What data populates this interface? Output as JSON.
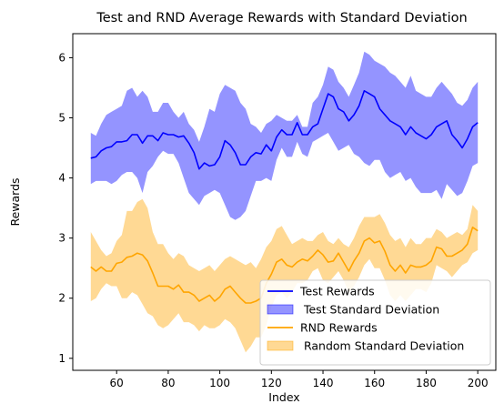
{
  "chart_data": {
    "type": "line",
    "title": "Test and RND Average Rewards with Standard Deviation",
    "xlabel": "Index",
    "ylabel": "Rewards",
    "xlim": [
      43,
      207
    ],
    "ylim": [
      0.8,
      6.4
    ],
    "xticks": [
      60,
      80,
      100,
      120,
      140,
      160,
      180,
      200
    ],
    "yticks": [
      1,
      2,
      3,
      4,
      5,
      6
    ],
    "legend_position": "lower right",
    "x": [
      50,
      52,
      54,
      56,
      58,
      60,
      62,
      64,
      66,
      68,
      70,
      72,
      74,
      76,
      78,
      80,
      82,
      84,
      86,
      88,
      90,
      92,
      94,
      96,
      98,
      100,
      102,
      104,
      106,
      108,
      110,
      112,
      114,
      116,
      118,
      120,
      122,
      124,
      126,
      128,
      130,
      132,
      134,
      136,
      138,
      140,
      142,
      144,
      146,
      148,
      150,
      152,
      154,
      156,
      158,
      160,
      162,
      164,
      166,
      168,
      170,
      172,
      174,
      176,
      178,
      180,
      182,
      184,
      186,
      188,
      190,
      192,
      194,
      196,
      198,
      200
    ],
    "series": [
      {
        "name": "Test Rewards",
        "color": "#0000ff",
        "kind": "line",
        "values": [
          4.33,
          4.35,
          4.45,
          4.5,
          4.52,
          4.6,
          4.6,
          4.62,
          4.72,
          4.72,
          4.58,
          4.7,
          4.7,
          4.62,
          4.75,
          4.72,
          4.72,
          4.68,
          4.7,
          4.58,
          4.42,
          4.15,
          4.25,
          4.2,
          4.22,
          4.35,
          4.62,
          4.55,
          4.42,
          4.22,
          4.22,
          4.35,
          4.42,
          4.4,
          4.55,
          4.45,
          4.68,
          4.8,
          4.72,
          4.72,
          4.92,
          4.72,
          4.72,
          4.85,
          4.9,
          5.15,
          5.4,
          5.35,
          5.15,
          5.1,
          4.95,
          5.05,
          5.2,
          5.45,
          5.4,
          5.35,
          5.15,
          5.05,
          4.95,
          4.9,
          4.85,
          4.72,
          4.85,
          4.75,
          4.7,
          4.65,
          4.72,
          4.85,
          4.9,
          4.95,
          4.72,
          4.62,
          4.5,
          4.65,
          4.85,
          4.92
        ]
      },
      {
        "name": " Test Standard Deviation",
        "color": "#0000ff",
        "kind": "band",
        "lower": [
          3.9,
          3.95,
          3.95,
          3.95,
          3.9,
          3.95,
          4.05,
          4.1,
          4.1,
          4.0,
          3.75,
          4.1,
          4.2,
          4.35,
          4.45,
          4.4,
          4.4,
          4.25,
          4.0,
          3.75,
          3.65,
          3.55,
          3.7,
          3.75,
          3.8,
          3.75,
          3.55,
          3.35,
          3.3,
          3.35,
          3.45,
          3.7,
          3.95,
          3.95,
          4.0,
          3.95,
          4.3,
          4.5,
          4.35,
          4.35,
          4.6,
          4.4,
          4.35,
          4.6,
          4.65,
          4.7,
          4.75,
          4.6,
          4.45,
          4.5,
          4.55,
          4.4,
          4.35,
          4.25,
          4.2,
          4.3,
          4.3,
          4.1,
          4.0,
          4.05,
          4.1,
          3.95,
          4.0,
          3.85,
          3.75,
          3.75,
          3.75,
          3.8,
          3.65,
          3.9,
          3.8,
          3.7,
          3.75,
          3.95,
          4.2,
          4.25
        ],
        "upper": [
          4.75,
          4.7,
          4.9,
          5.05,
          5.1,
          5.15,
          5.2,
          5.45,
          5.5,
          5.35,
          5.45,
          5.35,
          5.1,
          5.1,
          5.25,
          5.25,
          5.1,
          5.0,
          5.1,
          4.9,
          4.8,
          4.6,
          4.85,
          5.15,
          5.1,
          5.4,
          5.55,
          5.5,
          5.45,
          5.25,
          5.15,
          4.9,
          4.85,
          4.75,
          4.9,
          4.95,
          5.05,
          5.0,
          4.95,
          4.95,
          5.05,
          4.85,
          4.85,
          5.25,
          5.35,
          5.55,
          5.85,
          5.8,
          5.6,
          5.5,
          5.35,
          5.55,
          5.75,
          6.1,
          6.05,
          5.95,
          5.9,
          5.85,
          5.75,
          5.7,
          5.6,
          5.5,
          5.7,
          5.45,
          5.4,
          5.35,
          5.35,
          5.5,
          5.6,
          5.5,
          5.4,
          5.25,
          5.2,
          5.3,
          5.5,
          5.6
        ]
      },
      {
        "name": "RND Rewards",
        "color": "#ffa500",
        "kind": "line",
        "values": [
          2.52,
          2.45,
          2.52,
          2.45,
          2.45,
          2.58,
          2.6,
          2.68,
          2.7,
          2.75,
          2.72,
          2.62,
          2.42,
          2.2,
          2.2,
          2.2,
          2.15,
          2.22,
          2.1,
          2.1,
          2.05,
          1.95,
          2.0,
          2.05,
          1.95,
          2.02,
          2.15,
          2.2,
          2.1,
          2.0,
          1.92,
          1.92,
          1.95,
          2.0,
          2.25,
          2.4,
          2.6,
          2.65,
          2.55,
          2.52,
          2.6,
          2.65,
          2.62,
          2.7,
          2.8,
          2.72,
          2.6,
          2.62,
          2.75,
          2.6,
          2.45,
          2.62,
          2.75,
          2.95,
          3.0,
          2.92,
          2.95,
          2.78,
          2.55,
          2.45,
          2.55,
          2.42,
          2.55,
          2.52,
          2.52,
          2.55,
          2.62,
          2.85,
          2.82,
          2.7,
          2.7,
          2.75,
          2.8,
          2.9,
          3.18,
          3.12
        ]
      },
      {
        "name": " Random Standard Deviation",
        "color": "#ffa500",
        "kind": "band",
        "lower": [
          1.95,
          2.0,
          2.15,
          2.25,
          2.2,
          2.2,
          2.0,
          2.0,
          2.1,
          2.05,
          1.9,
          1.75,
          1.7,
          1.55,
          1.5,
          1.55,
          1.65,
          1.75,
          1.6,
          1.6,
          1.55,
          1.45,
          1.55,
          1.5,
          1.5,
          1.55,
          1.65,
          1.6,
          1.5,
          1.3,
          1.1,
          1.2,
          1.35,
          1.35,
          1.55,
          1.85,
          2.05,
          2.1,
          2.0,
          2.1,
          2.25,
          2.25,
          2.3,
          2.45,
          2.5,
          2.3,
          2.25,
          2.35,
          2.45,
          2.3,
          2.1,
          2.2,
          2.35,
          2.55,
          2.65,
          2.5,
          2.5,
          2.3,
          2.05,
          1.95,
          2.05,
          1.95,
          2.05,
          2.15,
          2.15,
          2.1,
          2.25,
          2.55,
          2.5,
          2.45,
          2.35,
          2.45,
          2.55,
          2.6,
          2.75,
          2.8
        ],
        "upper": [
          3.1,
          2.95,
          2.8,
          2.7,
          2.75,
          2.95,
          3.05,
          3.45,
          3.45,
          3.6,
          3.65,
          3.5,
          3.1,
          2.9,
          2.9,
          2.75,
          2.65,
          2.75,
          2.7,
          2.55,
          2.5,
          2.45,
          2.5,
          2.55,
          2.45,
          2.55,
          2.65,
          2.7,
          2.65,
          2.6,
          2.55,
          2.6,
          2.5,
          2.65,
          2.85,
          2.95,
          3.15,
          3.2,
          3.05,
          2.9,
          2.95,
          3.0,
          2.95,
          2.95,
          3.05,
          3.1,
          2.95,
          2.9,
          3.0,
          2.9,
          2.85,
          3.0,
          3.2,
          3.35,
          3.35,
          3.35,
          3.4,
          3.25,
          3.05,
          2.95,
          3.0,
          2.85,
          3.0,
          2.9,
          2.9,
          3.0,
          3.0,
          3.15,
          3.1,
          3.0,
          3.05,
          3.1,
          3.05,
          3.15,
          3.55,
          3.45
        ]
      }
    ]
  }
}
